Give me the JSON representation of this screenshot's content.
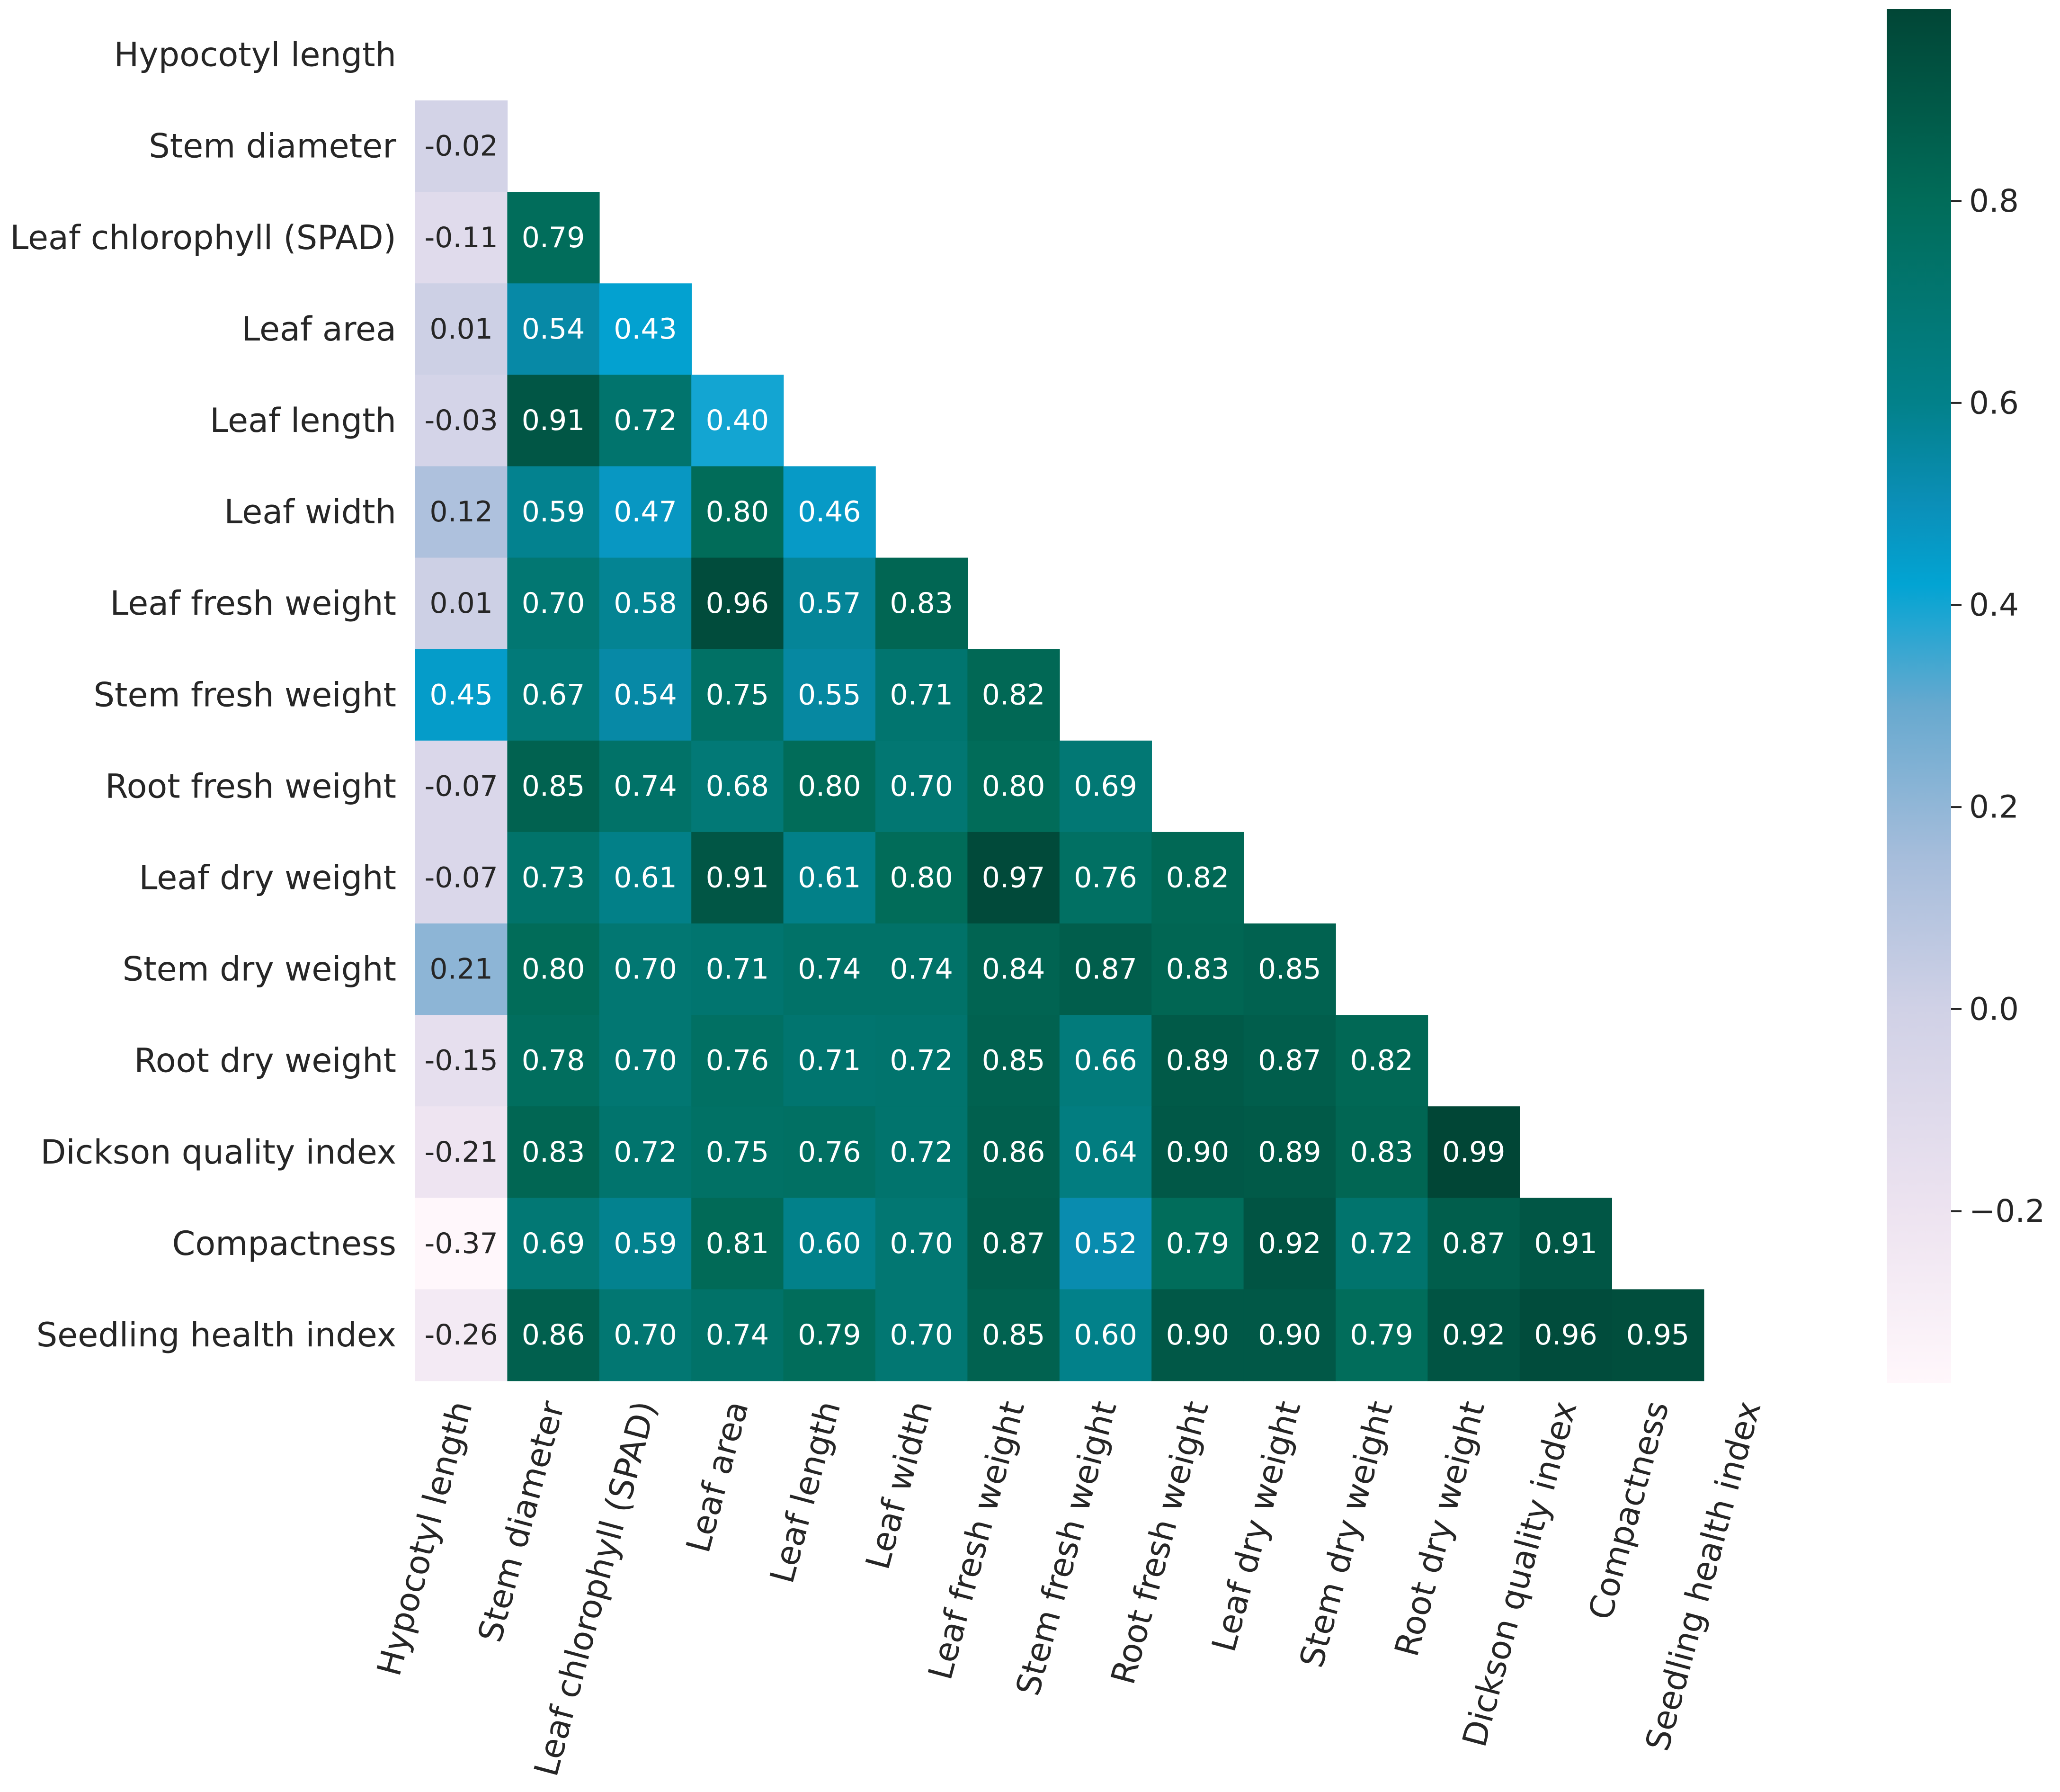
{
  "chart_data": {
    "type": "heatmap",
    "title": "",
    "xlabel": "",
    "ylabel": "",
    "variables": [
      "Hypocotyl length",
      "Stem diameter",
      "Leaf chlorophyll (SPAD)",
      "Leaf area",
      "Leaf length",
      "Leaf width",
      "Leaf fresh weight",
      "Stem fresh weight",
      "Root fresh weight",
      "Leaf dry weight",
      "Stem dry weight",
      "Root dry weight",
      "Dickson quality index",
      "Compactness",
      "Seedling health index"
    ],
    "mask": "upper-triangle-and-diagonal",
    "lower_triangle": [
      [],
      [
        "-0.02"
      ],
      [
        "-0.11",
        "0.79"
      ],
      [
        "0.01",
        "0.54",
        "0.43"
      ],
      [
        "-0.03",
        "0.91",
        "0.72",
        "0.40"
      ],
      [
        "0.12",
        "0.59",
        "0.47",
        "0.80",
        "0.46"
      ],
      [
        "0.01",
        "0.70",
        "0.58",
        "0.96",
        "0.57",
        "0.83"
      ],
      [
        "0.45",
        "0.67",
        "0.54",
        "0.75",
        "0.55",
        "0.71",
        "0.82"
      ],
      [
        "-0.07",
        "0.85",
        "0.74",
        "0.68",
        "0.80",
        "0.70",
        "0.80",
        "0.69"
      ],
      [
        "-0.07",
        "0.73",
        "0.61",
        "0.91",
        "0.61",
        "0.80",
        "0.97",
        "0.76",
        "0.82"
      ],
      [
        "0.21",
        "0.80",
        "0.70",
        "0.71",
        "0.74",
        "0.74",
        "0.84",
        "0.87",
        "0.83",
        "0.85"
      ],
      [
        "-0.15",
        "0.78",
        "0.70",
        "0.76",
        "0.71",
        "0.72",
        "0.85",
        "0.66",
        "0.89",
        "0.87",
        "0.82"
      ],
      [
        "-0.21",
        "0.83",
        "0.72",
        "0.75",
        "0.76",
        "0.72",
        "0.86",
        "0.64",
        "0.90",
        "0.89",
        "0.83",
        "0.99"
      ],
      [
        "-0.37",
        "0.69",
        "0.59",
        "0.81",
        "0.60",
        "0.70",
        "0.87",
        "0.52",
        "0.79",
        "0.92",
        "0.72",
        "0.87",
        "0.91"
      ],
      [
        "-0.26",
        "0.86",
        "0.70",
        "0.74",
        "0.79",
        "0.70",
        "0.85",
        "0.60",
        "0.90",
        "0.90",
        "0.79",
        "0.92",
        "0.96",
        "0.95"
      ]
    ],
    "colorbar": {
      "vmin": -0.37,
      "vmax": 0.99,
      "ticks": [
        -0.2,
        0.0,
        0.2,
        0.4,
        0.6,
        0.8
      ],
      "tick_labels": [
        "−0.2",
        "0.0",
        "0.2",
        "0.4",
        "0.6",
        "0.8"
      ],
      "colormap_stops": [
        {
          "value": -0.37,
          "color": "#fff7fb"
        },
        {
          "value": -0.2,
          "color": "#ede3f0"
        },
        {
          "value": 0.0,
          "color": "#d0d1e6"
        },
        {
          "value": 0.15,
          "color": "#a6bddb"
        },
        {
          "value": 0.3,
          "color": "#67a9cf"
        },
        {
          "value": 0.42,
          "color": "#02a4d3"
        },
        {
          "value": 0.5,
          "color": "#0b8fb8"
        },
        {
          "value": 0.6,
          "color": "#02818a"
        },
        {
          "value": 0.8,
          "color": "#016c59"
        },
        {
          "value": 0.99,
          "color": "#014636"
        }
      ]
    }
  }
}
